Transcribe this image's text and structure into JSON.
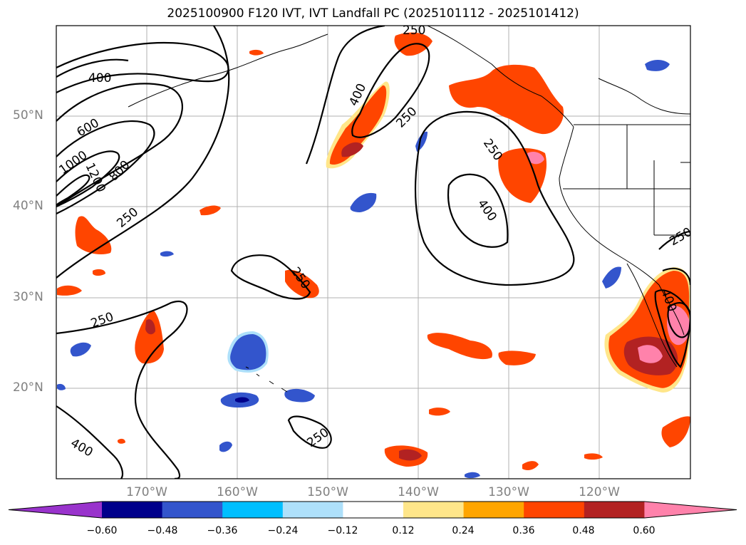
{
  "title": "2025100900 F120 IVT, IVT Landfall PC (2025101112 - 2025101412)",
  "lat_labels": [
    "50°N",
    "40°N",
    "30°N",
    "20°N"
  ],
  "lon_labels": [
    "170°W",
    "160°W",
    "150°W",
    "140°W",
    "130°W",
    "120°W"
  ],
  "contour_labels": [
    "400",
    "600",
    "1000",
    "1200",
    "800",
    "250",
    "250",
    "400",
    "250",
    "250",
    "400",
    "250",
    "250",
    "400",
    "250",
    "250",
    "400"
  ],
  "colorbar": {
    "colors": [
      "#9933cc",
      "#00008b",
      "#3355cc",
      "#00bfff",
      "#aee0fa",
      "#ffffff",
      "#ffe68a",
      "#ffa500",
      "#ff4500",
      "#b22222",
      "#ff82ab"
    ],
    "tick_labels": [
      "−0.60",
      "−0.48",
      "−0.36",
      "−0.24",
      "−0.12",
      "0.12",
      "0.24",
      "0.36",
      "0.48",
      "0.60"
    ]
  }
}
